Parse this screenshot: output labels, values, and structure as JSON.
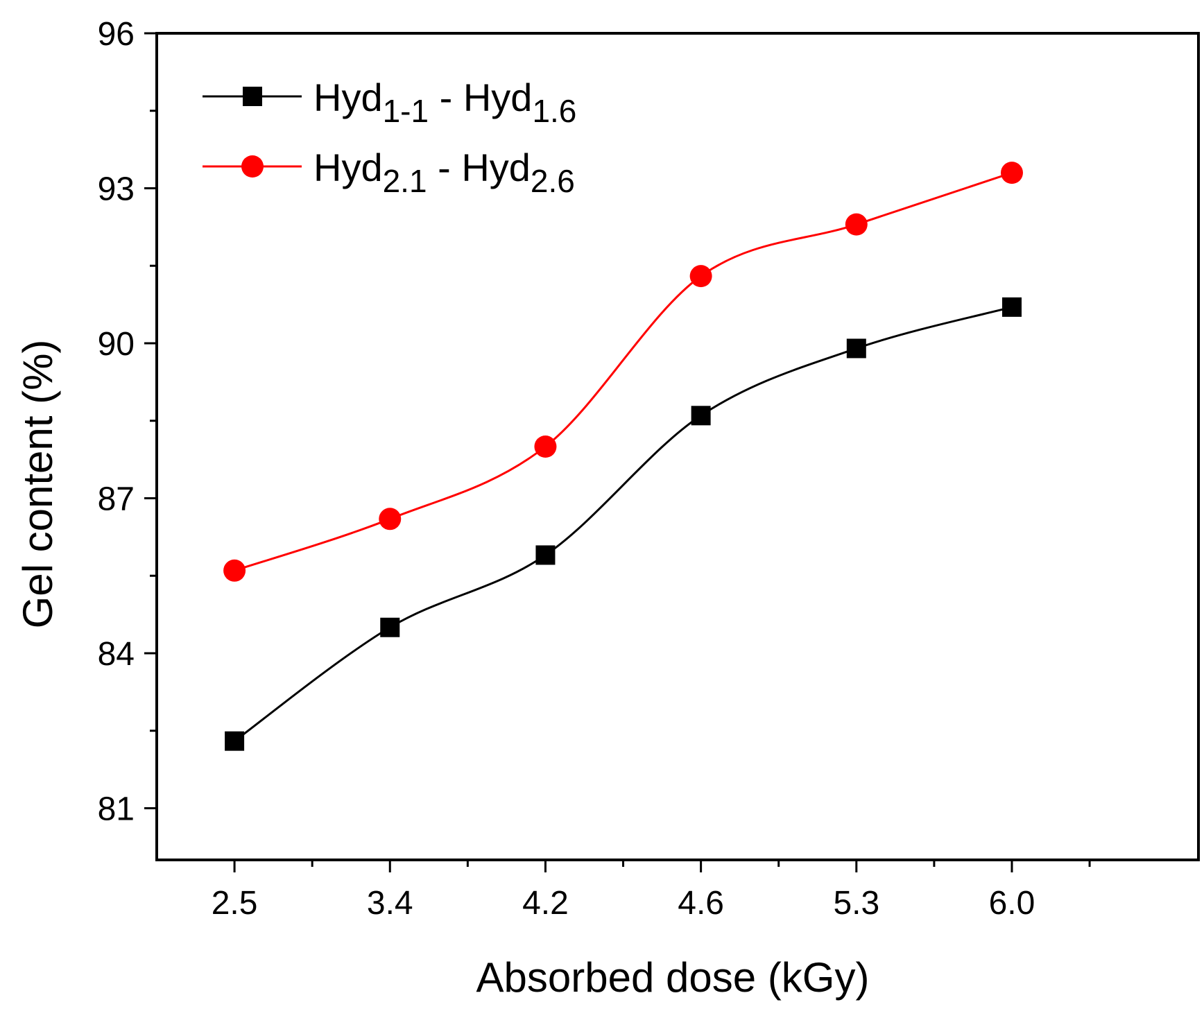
{
  "chart_data": {
    "type": "line",
    "title": "",
    "xlabel": "Absorbed dose (kGy)",
    "ylabel": "Gel content (%)",
    "categories": [
      "2.5",
      "3.4",
      "4.2",
      "4.6",
      "5.3",
      "6.0"
    ],
    "ylim": [
      80,
      96
    ],
    "yticks": [
      81,
      84,
      87,
      90,
      93,
      96
    ],
    "legend_position": "top-left",
    "series": [
      {
        "name": "Hyd1-1 - Hyd1.6",
        "legend_parts": {
          "a": "Hyd",
          "a_sub": "1-1",
          "sep": " - ",
          "b": "Hyd",
          "b_sub": "1.6"
        },
        "marker": "square",
        "color": "#000000",
        "values": [
          82.3,
          84.5,
          85.9,
          88.6,
          89.9,
          90.7
        ]
      },
      {
        "name": "Hyd2.1 - Hyd2.6",
        "legend_parts": {
          "a": "Hyd",
          "a_sub": "2.1",
          "sep": " - ",
          "b": "Hyd",
          "b_sub": "2.6"
        },
        "marker": "circle",
        "color": "#ff0000",
        "values": [
          85.6,
          86.6,
          88.0,
          91.3,
          92.3,
          93.3
        ]
      }
    ]
  }
}
